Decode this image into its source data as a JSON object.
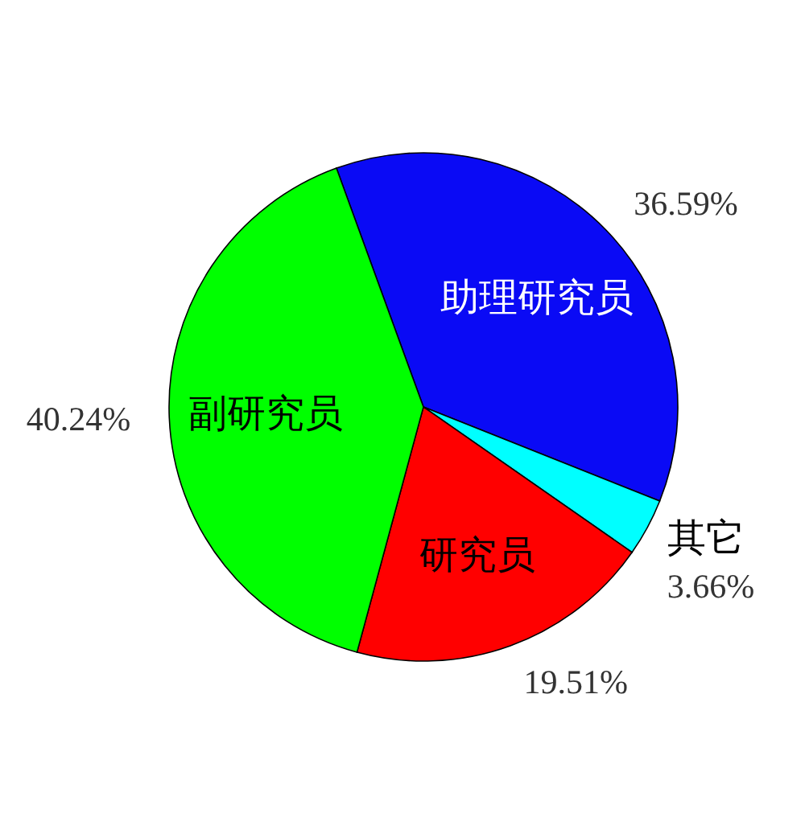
{
  "chart_data": {
    "type": "pie",
    "categories": [
      "助理研究员",
      "其它",
      "研究员",
      "副研究员"
    ],
    "values": [
      36.59,
      3.66,
      19.51,
      40.24
    ],
    "colors": [
      "#0a0af5",
      "#00ffff",
      "#ff0000",
      "#00ff00"
    ],
    "value_labels": [
      "36.59%",
      "3.66%",
      "19.51%",
      "40.24%"
    ]
  }
}
